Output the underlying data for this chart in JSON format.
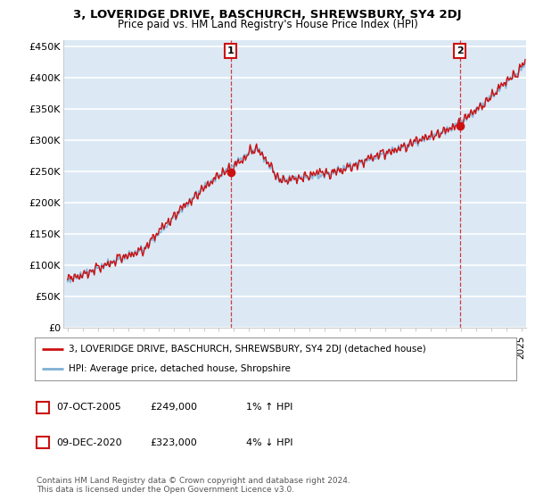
{
  "title": "3, LOVERIDGE DRIVE, BASCHURCH, SHREWSBURY, SY4 2DJ",
  "subtitle": "Price paid vs. HM Land Registry's House Price Index (HPI)",
  "ylabel_ticks": [
    "£0",
    "£50K",
    "£100K",
    "£150K",
    "£200K",
    "£250K",
    "£300K",
    "£350K",
    "£400K",
    "£450K"
  ],
  "ytick_values": [
    0,
    50000,
    100000,
    150000,
    200000,
    250000,
    300000,
    350000,
    400000,
    450000
  ],
  "ylim": [
    0,
    460000
  ],
  "xlim_start": 1994.7,
  "xlim_end": 2025.3,
  "sale1_date": 2005.77,
  "sale1_price": 249000,
  "sale2_date": 2020.92,
  "sale2_price": 323000,
  "hpi_color": "#7db0d4",
  "price_color": "#cc1111",
  "background_color": "#dce9f5",
  "grid_color": "#ffffff",
  "legend_label1": "3, LOVERIDGE DRIVE, BASCHURCH, SHREWSBURY, SY4 2DJ (detached house)",
  "legend_label2": "HPI: Average price, detached house, Shropshire",
  "table_row1": [
    "1",
    "07-OCT-2005",
    "£249,000",
    "1% ↑ HPI"
  ],
  "table_row2": [
    "2",
    "09-DEC-2020",
    "£323,000",
    "4% ↓ HPI"
  ],
  "footnote": "Contains HM Land Registry data © Crown copyright and database right 2024.\nThis data is licensed under the Open Government Licence v3.0."
}
